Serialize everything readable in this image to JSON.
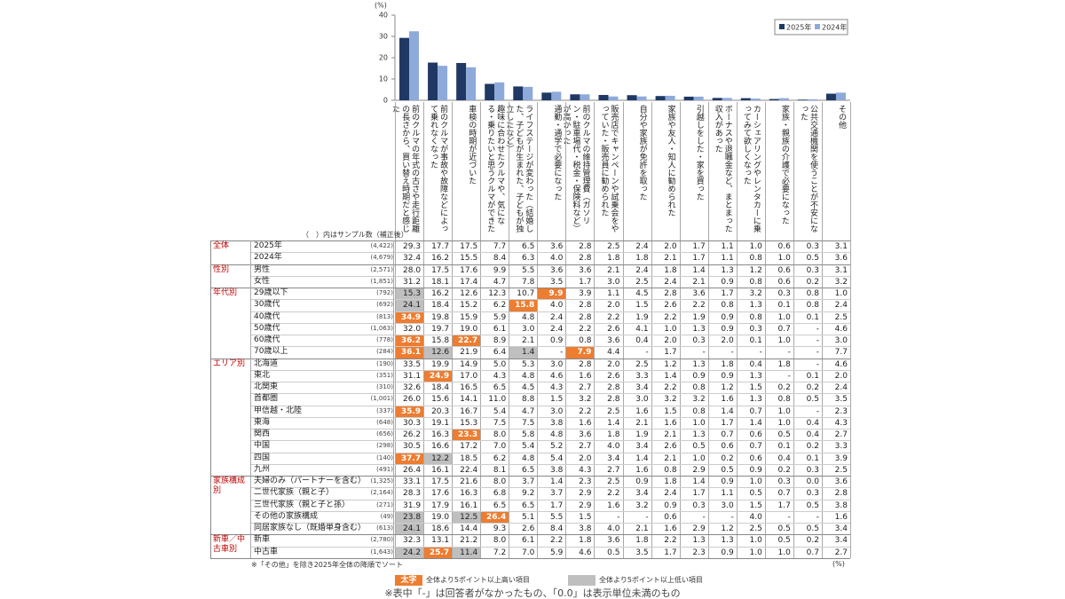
{
  "chart_data": {
    "type": "bar",
    "unit_label": "(%)",
    "legend": "top-right",
    "categories": [
      "前のクルマの年式の古さや走行距離の長さから、買い替え時期だと感じた",
      "前のクルマが事故や故障などによって乗れなくなった",
      "車検の時期が近づいた",
      "趣味に合わせたクルマや、気になる・乗りたいと思うクルマができた",
      "ライフステージが変わった（結婚した、子どもが生まれた、子どもが独立したなど）",
      "通勤・通学で必要になった",
      "前のクルマの維持管理費（ガソリン・駐車場代・税金・保険料など）が高かった",
      "販売店でキャンペーンや試乗会をやっていた・販売員に勧められた",
      "自分や家族が免許を取った",
      "家族や友人・知人に勧められた",
      "引越しをした・家を買った",
      "ボーナスや退職金など、まとまった収入があった",
      "カーシェアリングやレンタカーに乗ってみて欲しくなった",
      "家族・親族の介護で必要になった",
      "公共交通機関を使うことが不安になった",
      "その他"
    ],
    "series": [
      {
        "name": "2025年",
        "color": "#1f3864",
        "values": [
          29.3,
          17.7,
          17.5,
          7.7,
          6.5,
          3.6,
          2.8,
          2.5,
          2.4,
          2.0,
          1.7,
          1.1,
          1.0,
          0.6,
          0.3,
          3.1
        ]
      },
      {
        "name": "2024年",
        "color": "#8eaadb",
        "values": [
          32.4,
          16.2,
          15.5,
          8.4,
          6.3,
          4.0,
          2.8,
          1.8,
          1.8,
          2.1,
          1.7,
          1.1,
          0.8,
          1.0,
          0.5,
          3.6
        ]
      }
    ],
    "ylim": [
      0,
      40
    ],
    "yticks": [
      0,
      10,
      20,
      30,
      40
    ]
  },
  "table": {
    "caption": "（　）内はサンプル数（補正後）",
    "unit": "(%)",
    "high_color": "#ed7d31",
    "low_color": "#bfbfbf",
    "groups": [
      {
        "label": "全体",
        "rows": [
          {
            "label": "2025年",
            "n": "(4,422)",
            "cells": [
              "29.3",
              "17.7",
              "17.5",
              "7.7",
              "6.5",
              "3.6",
              "2.8",
              "2.5",
              "2.4",
              "2.0",
              "1.7",
              "1.1",
              "1.0",
              "0.6",
              "0.3",
              "3.1"
            ]
          },
          {
            "label": "2024年",
            "n": "(4,679)",
            "cells": [
              "32.4",
              "16.2",
              "15.5",
              "8.4",
              "6.3",
              "4.0",
              "2.8",
              "1.8",
              "1.8",
              "2.1",
              "1.7",
              "1.1",
              "0.8",
              "1.0",
              "0.5",
              "3.6"
            ]
          }
        ]
      },
      {
        "label": "性別",
        "rows": [
          {
            "label": "男性",
            "n": "(2,571)",
            "cells": [
              "28.0",
              "17.5",
              "17.6",
              "9.9",
              "5.5",
              "3.6",
              "3.6",
              "2.1",
              "2.4",
              "1.8",
              "1.4",
              "1.3",
              "1.2",
              "0.6",
              "0.3",
              "3.1"
            ]
          },
          {
            "label": "女性",
            "n": "(1,851)",
            "cells": [
              "31.2",
              "18.1",
              "17.4",
              "4.7",
              "7.8",
              "3.5",
              "1.7",
              "3.0",
              "2.5",
              "2.4",
              "2.1",
              "0.9",
              "0.8",
              "0.6",
              "0.2",
              "3.2"
            ]
          }
        ]
      },
      {
        "label": "年代別",
        "rows": [
          {
            "label": "29歳以下",
            "n": "(792)",
            "cells": [
              "15.3",
              "16.2",
              "12.6",
              "12.3",
              "10.7",
              "9.9",
              "3.9",
              "1.1",
              "4.5",
              "2.8",
              "3.6",
              "1.7",
              "3.2",
              "0.3",
              "0.8",
              "1.0"
            ],
            "shading": [
              "low",
              null,
              null,
              null,
              null,
              "high",
              null,
              null,
              null,
              null,
              null,
              null,
              null,
              null,
              null,
              null
            ]
          },
          {
            "label": "30歳代",
            "n": "(692)",
            "cells": [
              "24.1",
              "18.4",
              "15.2",
              "6.2",
              "15.8",
              "4.0",
              "2.8",
              "2.0",
              "1.5",
              "2.6",
              "2.2",
              "0.8",
              "1.3",
              "0.1",
              "0.8",
              "2.4"
            ],
            "shading": [
              "low",
              null,
              null,
              null,
              "high",
              null,
              null,
              null,
              null,
              null,
              null,
              null,
              null,
              null,
              null,
              null
            ]
          },
          {
            "label": "40歳代",
            "n": "(813)",
            "cells": [
              "34.9",
              "19.8",
              "15.9",
              "5.9",
              "4.8",
              "2.4",
              "2.8",
              "2.2",
              "1.9",
              "2.2",
              "1.9",
              "0.9",
              "0.8",
              "1.0",
              "0.1",
              "2.5"
            ],
            "shading": [
              "high",
              null,
              null,
              null,
              null,
              null,
              null,
              null,
              null,
              null,
              null,
              null,
              null,
              null,
              null,
              null
            ]
          },
          {
            "label": "50歳代",
            "n": "(1,063)",
            "cells": [
              "32.0",
              "19.7",
              "19.0",
              "6.1",
              "3.0",
              "2.4",
              "2.2",
              "2.6",
              "4.1",
              "1.0",
              "1.3",
              "0.9",
              "0.3",
              "0.7",
              "-",
              "4.6"
            ]
          },
          {
            "label": "60歳代",
            "n": "(778)",
            "cells": [
              "36.2",
              "15.8",
              "22.7",
              "8.9",
              "2.1",
              "0.9",
              "0.8",
              "3.6",
              "0.4",
              "2.0",
              "0.3",
              "2.0",
              "0.1",
              "1.0",
              "-",
              "3.0"
            ],
            "shading": [
              "high",
              null,
              "high",
              null,
              null,
              null,
              null,
              null,
              null,
              null,
              null,
              null,
              null,
              null,
              null,
              null
            ]
          },
          {
            "label": "70歳以上",
            "n": "(284)",
            "cells": [
              "36.1",
              "12.6",
              "21.9",
              "6.4",
              "1.4",
              "-",
              "7.9",
              "4.4",
              "-",
              "1.7",
              "-",
              "-",
              "-",
              "-",
              "-",
              "7.7"
            ],
            "shading": [
              "high",
              "low",
              null,
              null,
              "low",
              null,
              "high",
              null,
              null,
              null,
              null,
              null,
              null,
              null,
              null,
              null
            ]
          }
        ]
      },
      {
        "label": "エリア別",
        "rows": [
          {
            "label": "北海道",
            "n": "(190)",
            "cells": [
              "33.5",
              "19.9",
              "14.9",
              "5.0",
              "5.3",
              "3.0",
              "2.8",
              "2.0",
              "2.5",
              "1.2",
              "1.3",
              "1.8",
              "0.4",
              "1.8",
              "-",
              "4.6"
            ]
          },
          {
            "label": "東北",
            "n": "(351)",
            "cells": [
              "31.1",
              "24.9",
              "17.0",
              "4.3",
              "4.8",
              "4.6",
              "1.6",
              "2.6",
              "3.3",
              "1.4",
              "0.9",
              "0.9",
              "1.3",
              "-",
              "0.1",
              "2.0"
            ],
            "shading": [
              null,
              "high",
              null,
              null,
              null,
              null,
              null,
              null,
              null,
              null,
              null,
              null,
              null,
              null,
              null,
              null
            ]
          },
          {
            "label": "北関東",
            "n": "(310)",
            "cells": [
              "32.6",
              "18.4",
              "16.5",
              "6.5",
              "4.5",
              "4.3",
              "2.7",
              "2.8",
              "3.4",
              "2.2",
              "0.8",
              "1.2",
              "1.5",
              "0.2",
              "0.2",
              "2.4"
            ]
          },
          {
            "label": "首都圏",
            "n": "(1,001)",
            "cells": [
              "26.0",
              "15.6",
              "14.1",
              "11.0",
              "8.8",
              "1.5",
              "3.2",
              "2.8",
              "3.0",
              "3.2",
              "3.2",
              "1.6",
              "1.3",
              "0.8",
              "0.5",
              "3.5"
            ]
          },
          {
            "label": "甲信越・北陸",
            "n": "(337)",
            "cells": [
              "35.9",
              "20.3",
              "16.7",
              "5.4",
              "4.7",
              "3.0",
              "2.2",
              "2.5",
              "1.6",
              "1.5",
              "0.8",
              "1.4",
              "0.7",
              "1.0",
              "-",
              "2.3"
            ],
            "shading": [
              "high",
              null,
              null,
              null,
              null,
              null,
              null,
              null,
              null,
              null,
              null,
              null,
              null,
              null,
              null,
              null
            ]
          },
          {
            "label": "東海",
            "n": "(648)",
            "cells": [
              "30.3",
              "19.1",
              "15.3",
              "7.5",
              "7.5",
              "3.8",
              "1.6",
              "1.4",
              "2.1",
              "1.6",
              "1.0",
              "1.7",
              "1.4",
              "1.0",
              "0.4",
              "4.3"
            ]
          },
          {
            "label": "関西",
            "n": "(656)",
            "cells": [
              "26.2",
              "16.3",
              "23.3",
              "8.0",
              "5.8",
              "4.8",
              "3.6",
              "1.8",
              "1.9",
              "2.1",
              "1.3",
              "0.7",
              "0.6",
              "0.5",
              "0.4",
              "2.7"
            ],
            "shading": [
              null,
              null,
              "high",
              null,
              null,
              null,
              null,
              null,
              null,
              null,
              null,
              null,
              null,
              null,
              null,
              null
            ]
          },
          {
            "label": "中国",
            "n": "(298)",
            "cells": [
              "30.5",
              "16.6",
              "17.2",
              "7.0",
              "5.4",
              "5.2",
              "2.7",
              "4.0",
              "3.4",
              "2.6",
              "0.5",
              "0.6",
              "0.7",
              "0.1",
              "0.2",
              "3.3"
            ]
          },
          {
            "label": "四国",
            "n": "(140)",
            "cells": [
              "37.7",
              "12.2",
              "18.5",
              "6.2",
              "4.8",
              "5.4",
              "2.0",
              "3.4",
              "1.4",
              "2.1",
              "1.0",
              "0.2",
              "0.6",
              "0.4",
              "0.1",
              "3.9"
            ],
            "shading": [
              "high",
              "low",
              null,
              null,
              null,
              null,
              null,
              null,
              null,
              null,
              null,
              null,
              null,
              null,
              null,
              null
            ]
          },
          {
            "label": "九州",
            "n": "(491)",
            "cells": [
              "26.4",
              "16.1",
              "22.4",
              "8.1",
              "6.5",
              "3.8",
              "4.3",
              "2.7",
              "1.6",
              "0.8",
              "2.9",
              "0.5",
              "0.9",
              "0.2",
              "0.3",
              "2.5"
            ]
          }
        ]
      },
      {
        "label": "家族構成別",
        "rows": [
          {
            "label": "夫婦のみ（パートナーを含む）",
            "n": "(1,325)",
            "cells": [
              "33.1",
              "17.5",
              "21.6",
              "8.0",
              "3.7",
              "1.4",
              "2.3",
              "2.5",
              "0.9",
              "1.8",
              "1.4",
              "0.9",
              "1.0",
              "0.3",
              "0.0",
              "3.6"
            ]
          },
          {
            "label": "二世代家族（親と子）",
            "n": "(2,164)",
            "cells": [
              "28.3",
              "17.6",
              "16.3",
              "6.8",
              "9.2",
              "3.7",
              "2.9",
              "2.2",
              "3.4",
              "2.4",
              "1.7",
              "1.1",
              "0.5",
              "0.7",
              "0.3",
              "2.8"
            ]
          },
          {
            "label": "三世代家族（親と子と孫）",
            "n": "(271)",
            "cells": [
              "31.9",
              "17.9",
              "16.1",
              "6.5",
              "6.5",
              "1.7",
              "2.9",
              "1.6",
              "3.2",
              "0.9",
              "0.3",
              "3.0",
              "1.5",
              "1.7",
              "0.5",
              "3.8"
            ]
          },
          {
            "label": "その他の家族構成",
            "n": "(49)",
            "cells": [
              "23.8",
              "19.0",
              "12.5",
              "26.4",
              "5.1",
              "5.5",
              "1.5",
              "-",
              "-",
              "0.6",
              "-",
              "-",
              "4.0",
              "-",
              "-",
              "1.6"
            ],
            "shading": [
              "low",
              null,
              "low",
              "high",
              null,
              null,
              null,
              null,
              null,
              null,
              null,
              null,
              null,
              null,
              null,
              null
            ]
          },
          {
            "label": "同居家族なし（既婚単身含む）",
            "n": "(613)",
            "cells": [
              "24.1",
              "18.6",
              "14.4",
              "9.3",
              "2.6",
              "8.4",
              "3.8",
              "4.0",
              "2.1",
              "1.6",
              "2.9",
              "1.2",
              "2.5",
              "0.5",
              "0.5",
              "3.4"
            ],
            "shading": [
              "low",
              null,
              null,
              null,
              null,
              null,
              null,
              null,
              null,
              null,
              null,
              null,
              null,
              null,
              null,
              null
            ]
          }
        ]
      },
      {
        "label": "新車／中古車別",
        "rows": [
          {
            "label": "新車",
            "n": "(2,780)",
            "cells": [
              "32.3",
              "13.1",
              "21.2",
              "8.0",
              "6.1",
              "2.2",
              "1.8",
              "3.6",
              "1.8",
              "2.2",
              "1.3",
              "1.3",
              "1.0",
              "0.5",
              "0.2",
              "3.4"
            ]
          },
          {
            "label": "中古車",
            "n": "(1,643)",
            "cells": [
              "24.2",
              "25.7",
              "11.4",
              "7.2",
              "7.0",
              "5.9",
              "4.6",
              "0.5",
              "3.5",
              "1.7",
              "2.3",
              "0.9",
              "1.0",
              "1.0",
              "0.7",
              "2.7"
            ],
            "shading": [
              "low",
              "high",
              "low",
              null,
              null,
              null,
              null,
              null,
              null,
              null,
              null,
              null,
              null,
              null,
              null,
              null
            ]
          }
        ]
      }
    ]
  },
  "notes": {
    "sort": "※「その他」を除き2025年全体の降順でソート",
    "high_swatch": "太字",
    "high_label": "全体より5ポイント以上高い項目",
    "low_label": "全体より5ポイント以上低い項目",
    "footnote": "※表中「-」は回答者がなかったもの、「0.0」は表示単位未満のもの"
  }
}
